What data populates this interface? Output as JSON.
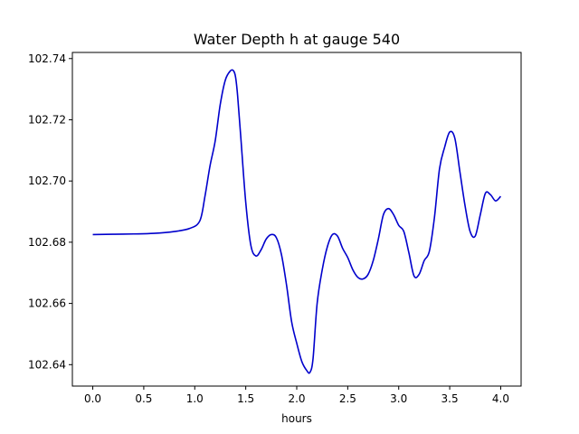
{
  "chart_data": {
    "type": "line",
    "title": "Water Depth h at gauge 540",
    "xlabel": "hours",
    "ylabel": "",
    "xlim": [
      -0.2,
      4.2
    ],
    "ylim": [
      102.633,
      102.742
    ],
    "grid": false,
    "x_ticks": [
      0.0,
      0.5,
      1.0,
      1.5,
      2.0,
      2.5,
      3.0,
      3.5,
      4.0
    ],
    "x_tick_labels": [
      "0.0",
      "0.5",
      "1.0",
      "1.5",
      "2.0",
      "2.5",
      "3.0",
      "3.5",
      "4.0"
    ],
    "y_ticks": [
      102.64,
      102.66,
      102.68,
      102.7,
      102.72,
      102.74
    ],
    "y_tick_labels": [
      "102.64",
      "102.66",
      "102.68",
      "102.70",
      "102.72",
      "102.74"
    ],
    "series": [
      {
        "color": "#0000cc",
        "x": [
          0.0,
          0.2,
          0.4,
          0.6,
          0.8,
          0.95,
          1.05,
          1.1,
          1.15,
          1.2,
          1.25,
          1.3,
          1.35,
          1.38,
          1.4,
          1.42,
          1.45,
          1.5,
          1.55,
          1.6,
          1.65,
          1.7,
          1.75,
          1.8,
          1.85,
          1.9,
          1.95,
          2.0,
          2.05,
          2.1,
          2.13,
          2.16,
          2.2,
          2.25,
          2.3,
          2.35,
          2.4,
          2.45,
          2.5,
          2.55,
          2.6,
          2.65,
          2.7,
          2.75,
          2.8,
          2.85,
          2.9,
          2.95,
          3.0,
          3.05,
          3.1,
          3.15,
          3.2,
          3.25,
          3.3,
          3.35,
          3.4,
          3.45,
          3.5,
          3.55,
          3.6,
          3.65,
          3.7,
          3.75,
          3.8,
          3.85,
          3.9,
          3.95,
          4.0
        ],
        "y": [
          102.6825,
          102.6826,
          102.6827,
          102.6829,
          102.6835,
          102.6845,
          102.687,
          102.695,
          102.705,
          102.713,
          102.725,
          102.733,
          102.736,
          102.736,
          102.734,
          102.728,
          102.715,
          102.693,
          102.679,
          102.6755,
          102.6775,
          102.681,
          102.6825,
          102.6815,
          102.676,
          102.666,
          102.654,
          102.647,
          102.641,
          102.638,
          102.6375,
          102.642,
          102.66,
          102.671,
          102.6785,
          102.6825,
          102.682,
          102.678,
          102.675,
          102.671,
          102.6685,
          102.668,
          102.6695,
          102.674,
          102.681,
          102.689,
          102.691,
          102.689,
          102.6855,
          102.6835,
          102.6765,
          102.669,
          102.6695,
          102.674,
          102.677,
          102.688,
          102.704,
          102.711,
          102.716,
          102.714,
          102.703,
          102.692,
          102.6835,
          102.682,
          102.689,
          102.696,
          102.6955,
          102.6935,
          102.695
        ]
      }
    ]
  }
}
